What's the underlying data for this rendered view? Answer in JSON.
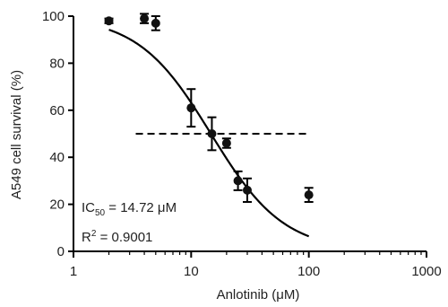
{
  "chart_data": {
    "type": "scatter",
    "xlabel": "Anlotinib (μM)",
    "ylabel": "A549 cell survival (%)",
    "x_scale": "log",
    "xlim": [
      1,
      1000
    ],
    "ylim": [
      0,
      100
    ],
    "x_ticks": [
      1,
      10,
      100,
      1000
    ],
    "x_tick_labels": [
      "1",
      "10",
      "100",
      "1000"
    ],
    "y_ticks": [
      0,
      20,
      40,
      60,
      80,
      100
    ],
    "y_tick_labels": [
      "0",
      "20",
      "40",
      "60",
      "80",
      "100"
    ],
    "grid": false,
    "points": [
      {
        "x": 2,
        "y": 98,
        "err": 1
      },
      {
        "x": 4,
        "y": 99,
        "err": 2
      },
      {
        "x": 5,
        "y": 97,
        "err": 3
      },
      {
        "x": 10,
        "y": 61,
        "err": 8
      },
      {
        "x": 15,
        "y": 50,
        "err": 7
      },
      {
        "x": 20,
        "y": 46,
        "err": 2
      },
      {
        "x": 25,
        "y": 30,
        "err": 4
      },
      {
        "x": 30,
        "y": 26,
        "err": 5
      },
      {
        "x": 100,
        "y": 24,
        "err": 3
      }
    ],
    "fit_curve": {
      "model": "sigmoid",
      "ic50": 14.72,
      "hill": 1.4,
      "top": 100,
      "bottom": 0,
      "x_range": [
        2,
        100
      ]
    },
    "reference_line": {
      "y": 50,
      "x_range": [
        2,
        100
      ],
      "style": "dashed"
    },
    "annotations": {
      "ic50_prefix": "IC",
      "ic50_sub": "50",
      "ic50_value": " = 14.72 μM",
      "r2_prefix": "R",
      "r2_sup": "2",
      "r2_value": " = 0.9001"
    }
  }
}
